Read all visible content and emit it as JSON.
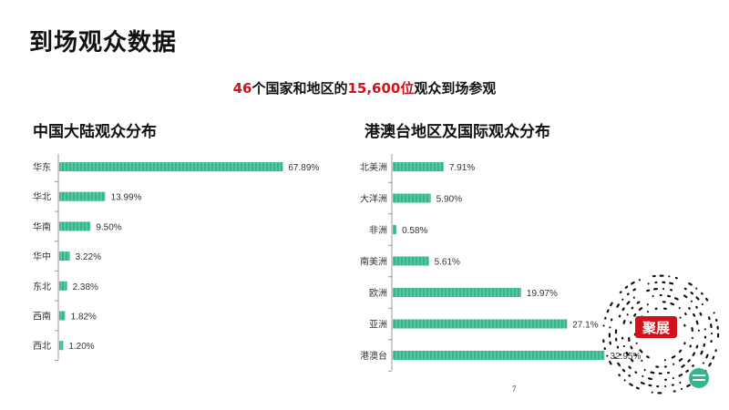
{
  "title": "到场观众数据",
  "subtitle": {
    "count_countries": "46",
    "text_countries": "个国家和地区的",
    "count_visitors": "15,600位",
    "text_rest": "观众到场参观"
  },
  "page_number": "7",
  "qr_badge": {
    "label": "聚展"
  },
  "colors": {
    "bar": "#35b58a",
    "bar_stripe": "#7fd8b6",
    "accent_red": "#d0121b",
    "axis": "#999999"
  },
  "chart_data": [
    {
      "type": "bar",
      "orientation": "horizontal",
      "title": "中国大陆观众分布",
      "categories": [
        "华东",
        "华北",
        "华南",
        "华中",
        "东北",
        "西南",
        "西北"
      ],
      "values": [
        67.89,
        13.99,
        9.5,
        3.22,
        2.38,
        1.82,
        1.2
      ],
      "value_labels": [
        "67.89%",
        "13.99%",
        "9.50%",
        "3.22%",
        "2.38%",
        "1.82%",
        "1.20%"
      ],
      "xlim": [
        0,
        70
      ]
    },
    {
      "type": "bar",
      "orientation": "horizontal",
      "title": "港澳台地区及国际观众分布",
      "categories": [
        "北美洲",
        "大洋洲",
        "非洲",
        "南美洲",
        "欧洲",
        "亚洲",
        "港澳台"
      ],
      "values": [
        7.91,
        5.9,
        0.58,
        5.61,
        19.97,
        27.1,
        32.95
      ],
      "value_labels": [
        "7.91%",
        "5.90%",
        "0.58%",
        "5.61%",
        "19.97%",
        "27.1%",
        "32.95%"
      ],
      "xlim": [
        0,
        35
      ]
    }
  ]
}
